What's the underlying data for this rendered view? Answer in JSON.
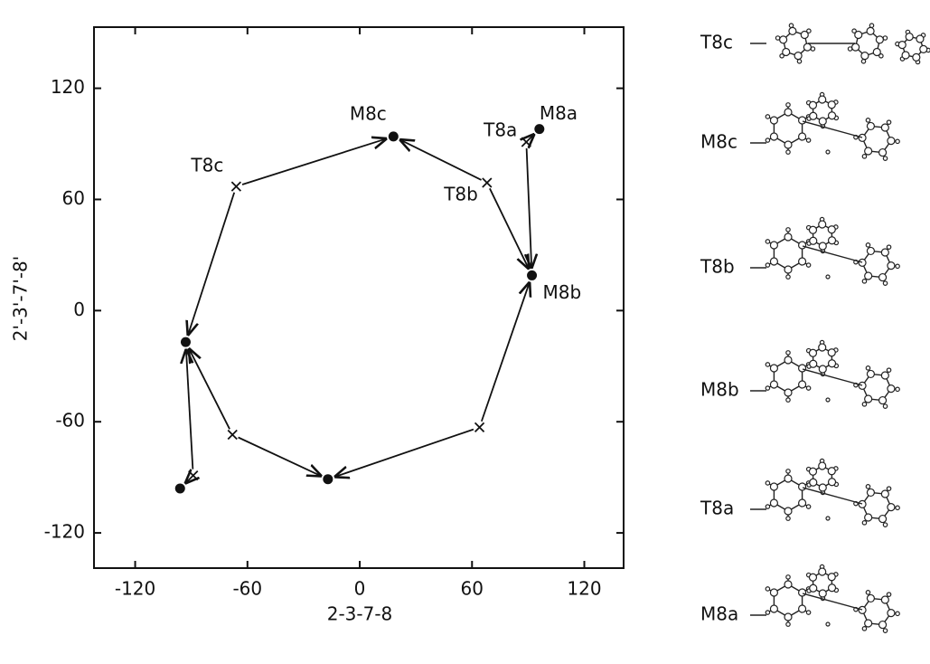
{
  "chart_data": {
    "type": "scatter",
    "x_label": "2-3-7-8",
    "y_label": "2'-3'-7'-8'",
    "xlim": [
      -142,
      141
    ],
    "ylim": [
      -139,
      153
    ],
    "xticks": [
      -120,
      -60,
      0,
      60,
      120
    ],
    "yticks": [
      120,
      60,
      0,
      -60,
      -120
    ],
    "series": [
      {
        "marker": "dot",
        "color": "#111111",
        "x": [
          18,
          96,
          92,
          -93,
          -17,
          -96
        ],
        "y": [
          94,
          98,
          19,
          -17,
          -91,
          -96
        ],
        "labels": [
          "M8c",
          "M8a",
          "M8b",
          null,
          null,
          null
        ]
      },
      {
        "marker": "cross",
        "color": "#111111",
        "x": [
          89,
          68,
          -66,
          -68,
          64,
          -89
        ],
        "y": [
          91,
          69,
          67,
          -67,
          -63,
          -89
        ],
        "labels": [
          "T8a",
          "T8b",
          "T8c",
          null,
          null,
          null
        ]
      }
    ]
  },
  "structure_labels": [
    "T8c",
    "M8c",
    "T8b",
    "M8b",
    "T8a",
    "M8a"
  ]
}
